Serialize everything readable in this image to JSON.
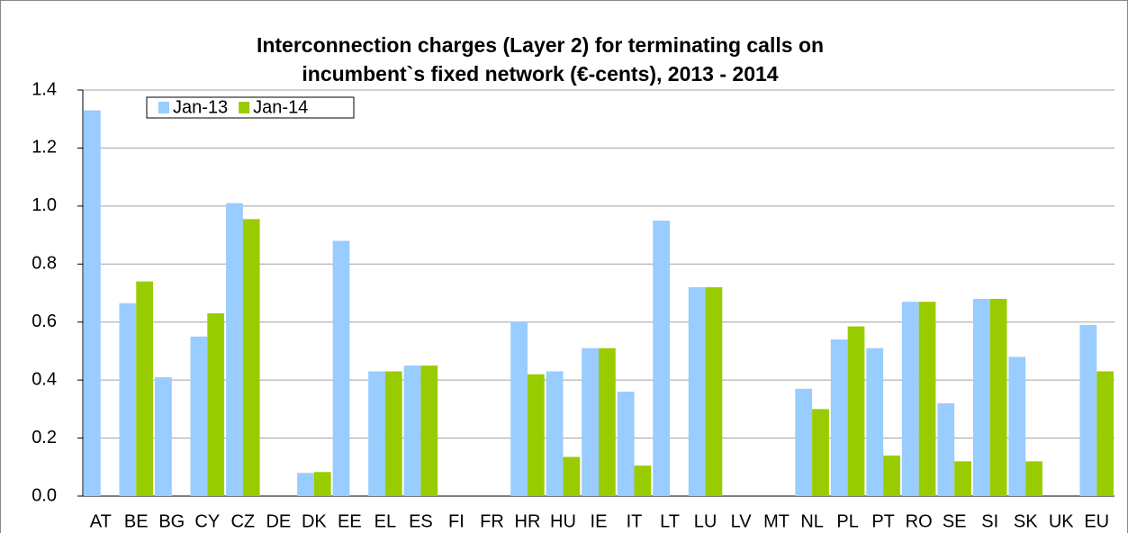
{
  "chart_data": {
    "type": "bar",
    "title": [
      "Interconnection charges (Layer 2) for terminating calls on",
      "incumbent`s fixed network (€-cents), 2013 - 2014"
    ],
    "categories": [
      "AT",
      "BE",
      "BG",
      "CY",
      "CZ",
      "DE",
      "DK",
      "EE",
      "EL",
      "ES",
      "FI",
      "FR",
      "HR",
      "HU",
      "IE",
      "IT",
      "LT",
      "LU",
      "LV",
      "MT",
      "NL",
      "PL",
      "PT",
      "RO",
      "SE",
      "SI",
      "SK",
      "UK",
      "EU"
    ],
    "series": [
      {
        "name": "Jan-13",
        "color": "#99ccff",
        "values": [
          1.33,
          0.665,
          0.41,
          0.55,
          1.01,
          null,
          0.08,
          0.88,
          0.43,
          0.45,
          null,
          null,
          0.6,
          0.43,
          0.51,
          0.36,
          0.95,
          0.72,
          null,
          null,
          0.37,
          0.54,
          0.51,
          0.67,
          0.32,
          0.68,
          0.48,
          null,
          0.59
        ]
      },
      {
        "name": "Jan-14",
        "color": "#99cc00",
        "values": [
          null,
          0.74,
          null,
          0.63,
          0.955,
          null,
          0.083,
          null,
          0.43,
          0.45,
          null,
          null,
          0.42,
          0.135,
          0.51,
          0.105,
          null,
          0.72,
          null,
          null,
          0.3,
          0.585,
          0.14,
          0.67,
          0.12,
          0.68,
          0.12,
          null,
          0.43
        ]
      }
    ],
    "ylim": [
      0,
      1.4
    ],
    "yticks": [
      {
        "value": 0,
        "label": "0.0"
      },
      0.2,
      0.4,
      0.6,
      0.8,
      {
        "value": 1,
        "label": "1.0"
      },
      1.2,
      1.4
    ],
    "grid": true,
    "legend": "top-left"
  }
}
